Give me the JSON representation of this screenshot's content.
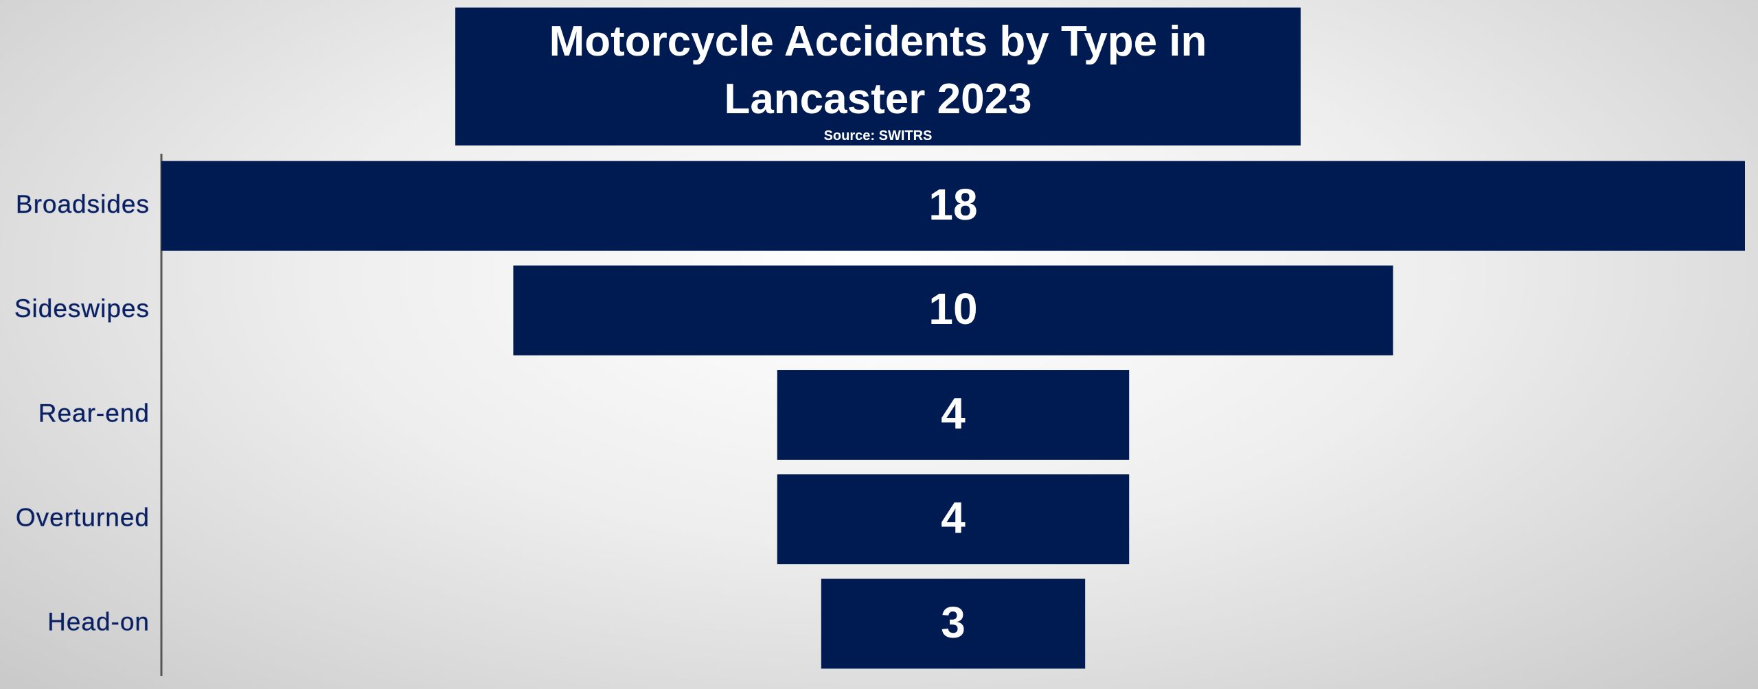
{
  "chart_data": {
    "type": "funnel",
    "title": "Motorcycle Accidents by Type in Lancaster 2023",
    "subtitle": "Source: SWITRS",
    "categories": [
      "Broadsides",
      "Sideswipes",
      "Rear-end",
      "Overturned",
      "Head-on"
    ],
    "values": [
      18,
      10,
      4,
      4,
      3
    ],
    "color": "#001a52"
  }
}
